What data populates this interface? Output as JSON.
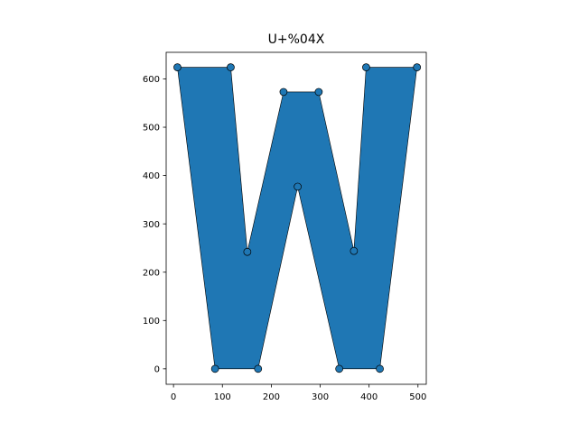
{
  "chart_data": {
    "type": "area",
    "title": "U+%04X",
    "xlabel": "",
    "ylabel": "",
    "xlim": [
      -15,
      517
    ],
    "ylim": [
      -32,
      655
    ],
    "xticks": [
      0,
      100,
      200,
      300,
      400,
      500
    ],
    "yticks": [
      0,
      100,
      200,
      300,
      400,
      500,
      600
    ],
    "grid": false,
    "fill_color": "#1f77b4",
    "edge_color": "#000000",
    "x": [
      8,
      117,
      151,
      225,
      297,
      369,
      394,
      498,
      422,
      339,
      254,
      173,
      85
    ],
    "y": [
      624,
      624,
      242,
      573,
      573,
      244,
      624,
      624,
      0,
      0,
      377,
      0,
      0
    ]
  }
}
